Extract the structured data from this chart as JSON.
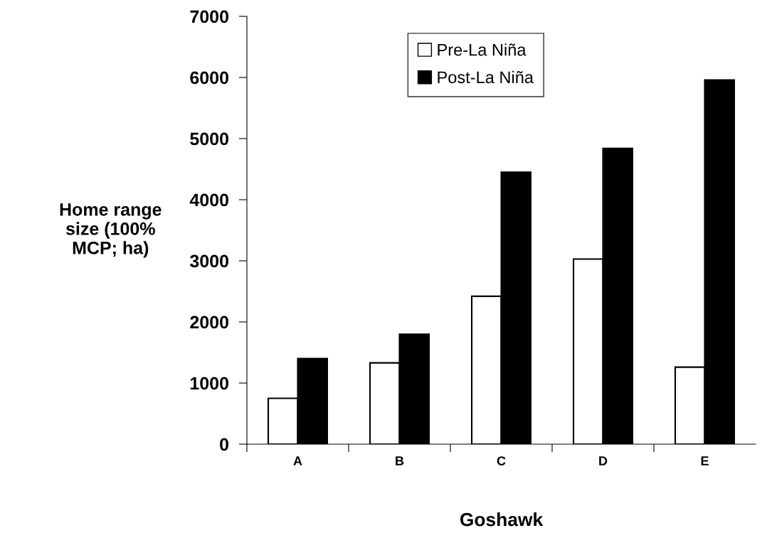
{
  "chart_data": {
    "type": "bar",
    "xlabel": "Goshawk",
    "ylabel": "Home range\nsize (100%\nMCP; ha)",
    "categories": [
      "A",
      "B",
      "C",
      "D",
      "E"
    ],
    "series": [
      {
        "name": "Pre-La Niña",
        "color": "#ffffff",
        "values": [
          750,
          1330,
          2420,
          3030,
          1260
        ]
      },
      {
        "name": "Post-La Niña",
        "color": "#000000",
        "values": [
          1400,
          1800,
          4450,
          4840,
          5960
        ]
      }
    ],
    "ylim": [
      0,
      7000
    ],
    "yticks": [
      0,
      1000,
      2000,
      3000,
      4000,
      5000,
      6000,
      7000
    ],
    "grid": false,
    "legend": "top"
  }
}
